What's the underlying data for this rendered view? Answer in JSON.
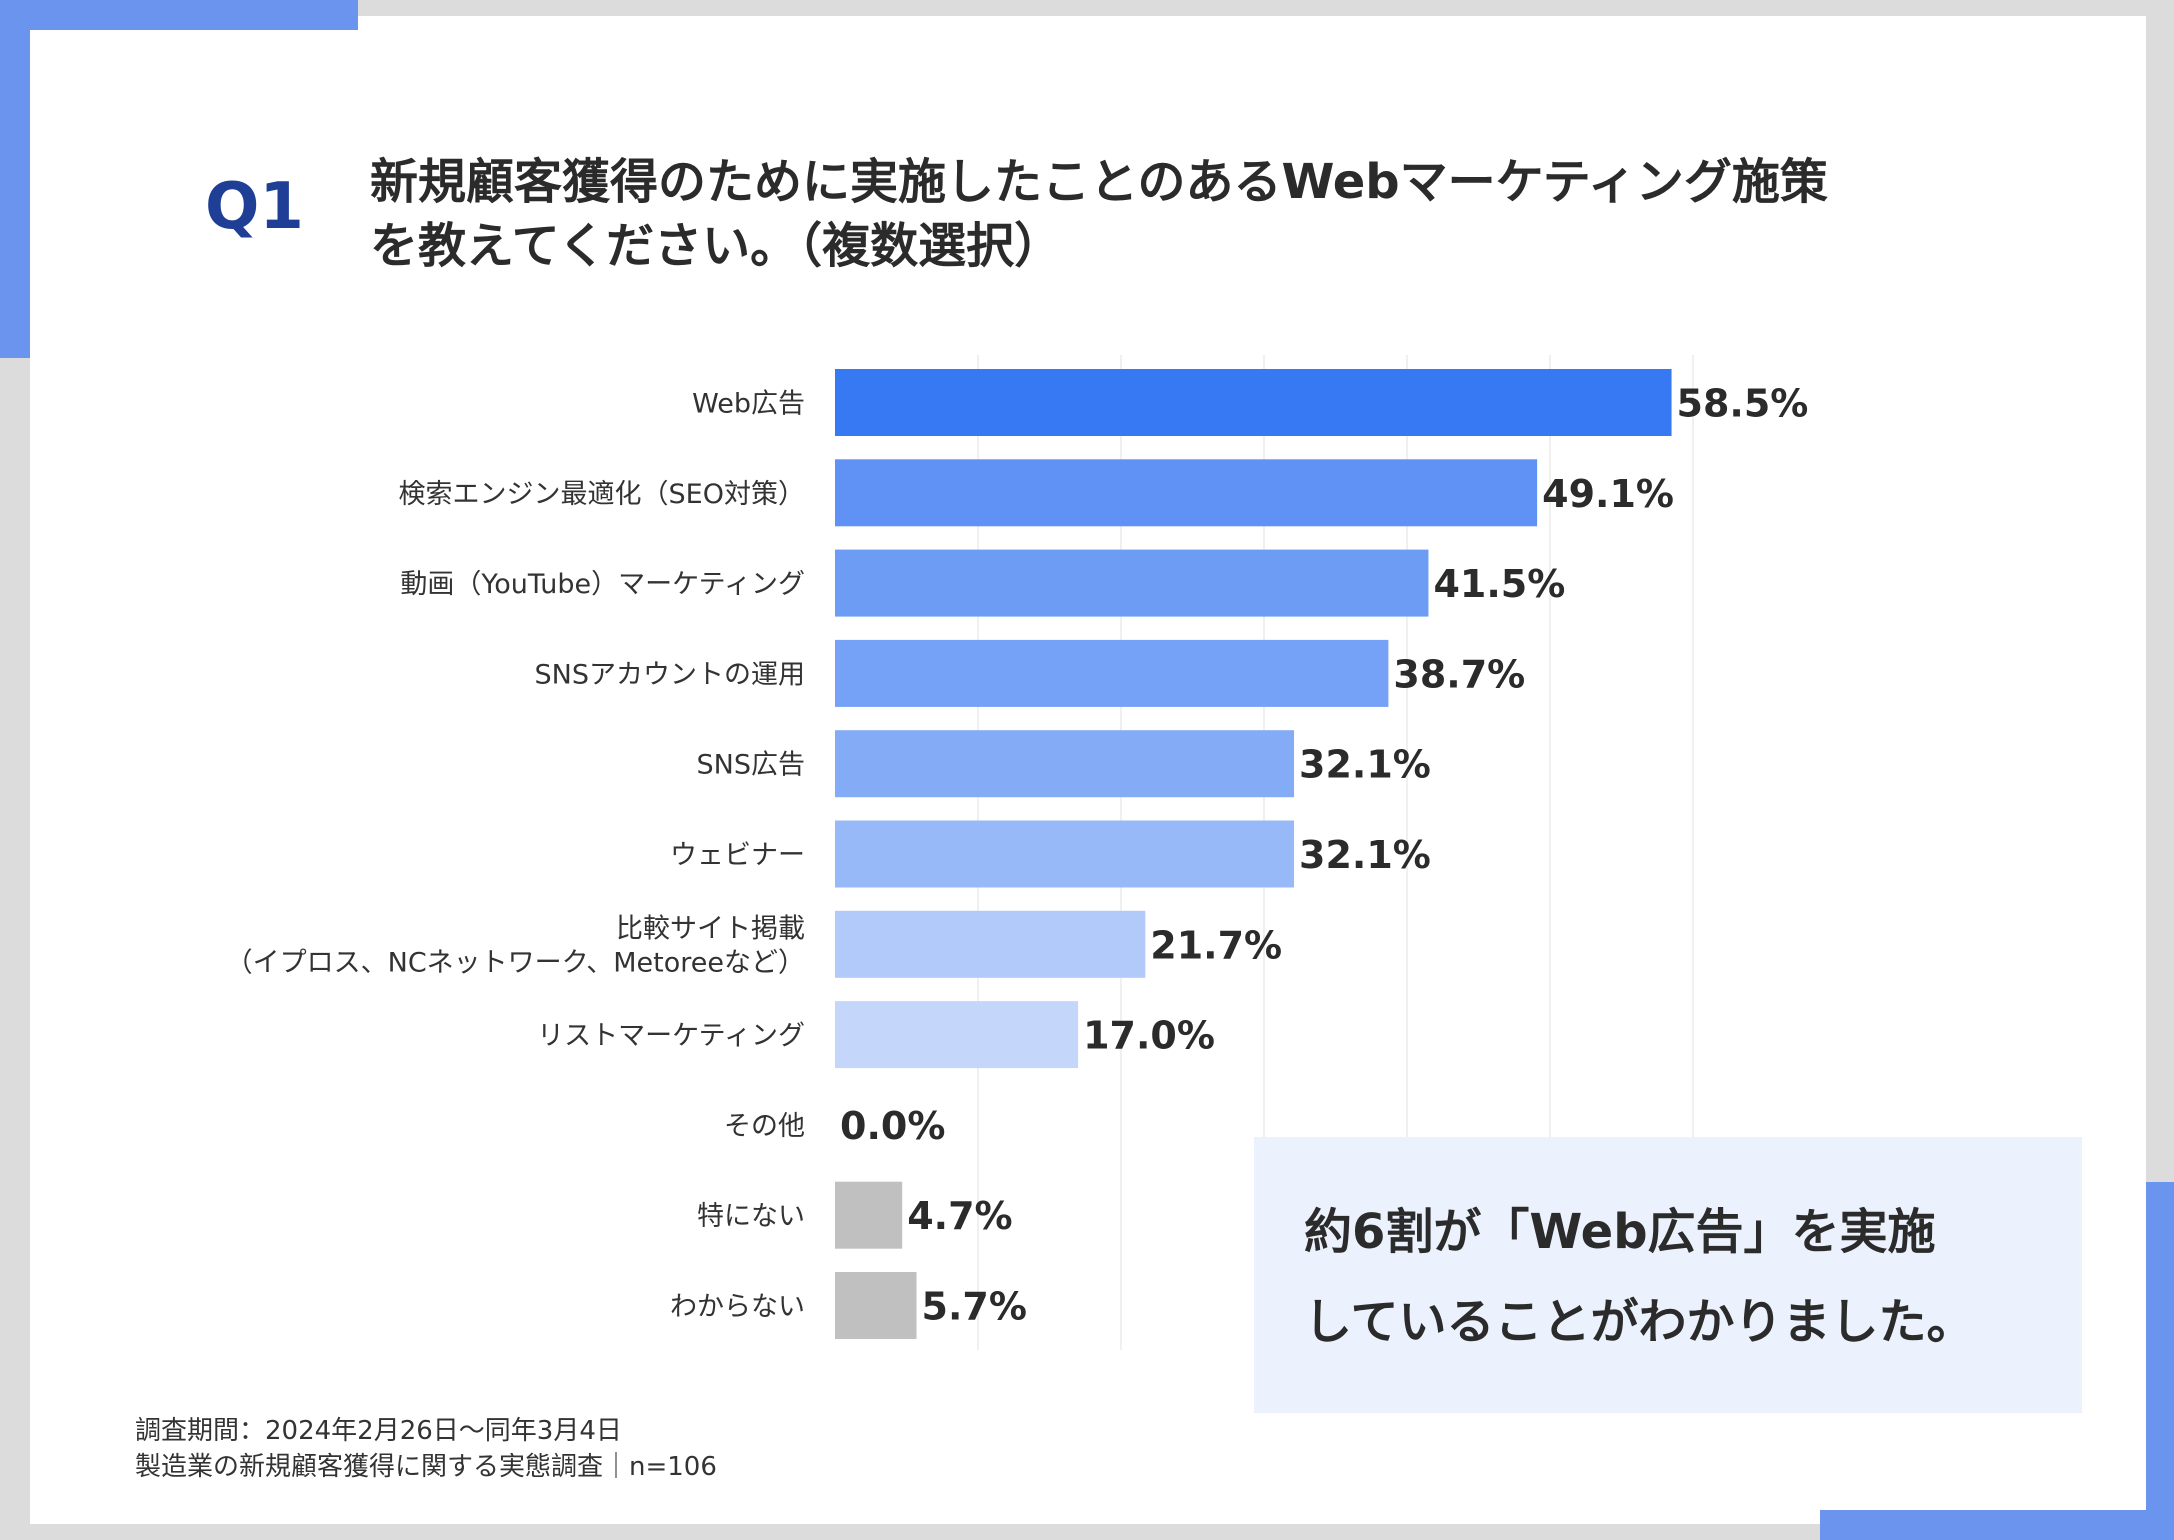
{
  "colors": {
    "accent": "#6b94ef",
    "title": "#2b2b2b",
    "question_label": "#1f3f96",
    "summary_bg": "#ecf2fd",
    "gray_bar": "#c0c0c0"
  },
  "question": {
    "label": "Q1",
    "title_line1": "新規顧客獲得のために実施したことのあるWebマーケティング施策",
    "title_line2": "を教えてください。（複数選択）"
  },
  "chart_data": {
    "type": "bar",
    "orientation": "horizontal",
    "unit": "%",
    "xlim": [
      0,
      60
    ],
    "grid": true,
    "categories": [
      [
        "Web広告"
      ],
      [
        "検索エンジン最適化（SEO対策）"
      ],
      [
        "動画（YouTube）マーケティング"
      ],
      [
        "SNSアカウントの運用"
      ],
      [
        "SNS広告"
      ],
      [
        "ウェビナー"
      ],
      [
        "比較サイト掲載",
        "（イプロス、NCネットワーク、Metoreeなど）"
      ],
      [
        "リストマーケティング"
      ],
      [
        "その他"
      ],
      [
        "特にない"
      ],
      [
        "わからない"
      ]
    ],
    "values": [
      58.5,
      49.1,
      41.5,
      38.7,
      32.1,
      32.1,
      21.7,
      17.0,
      0.0,
      4.7,
      5.7
    ],
    "value_labels": [
      "58.5%",
      "49.1%",
      "41.5%",
      "38.7%",
      "32.1%",
      "32.1%",
      "21.7%",
      "17.0%",
      "0.0%",
      "4.7%",
      "5.7%"
    ],
    "bar_colors": [
      "#3679f3",
      "#5f92f4",
      "#6d9cf5",
      "#75a1f6",
      "#83abf6",
      "#98b9f8",
      "#b1cafa",
      "#c4d7fb",
      "#c0c0c0",
      "#c0c0c0",
      "#c0c0c0"
    ]
  },
  "summary": {
    "line1": "約6割が「Web広告」を実施",
    "line2": "していることがわかりました。"
  },
  "footer": {
    "line1": "調査期間：2024年2月26日～同年3月4日",
    "line2": "製造業の新規顧客獲得に関する実態調査｜n=106"
  }
}
